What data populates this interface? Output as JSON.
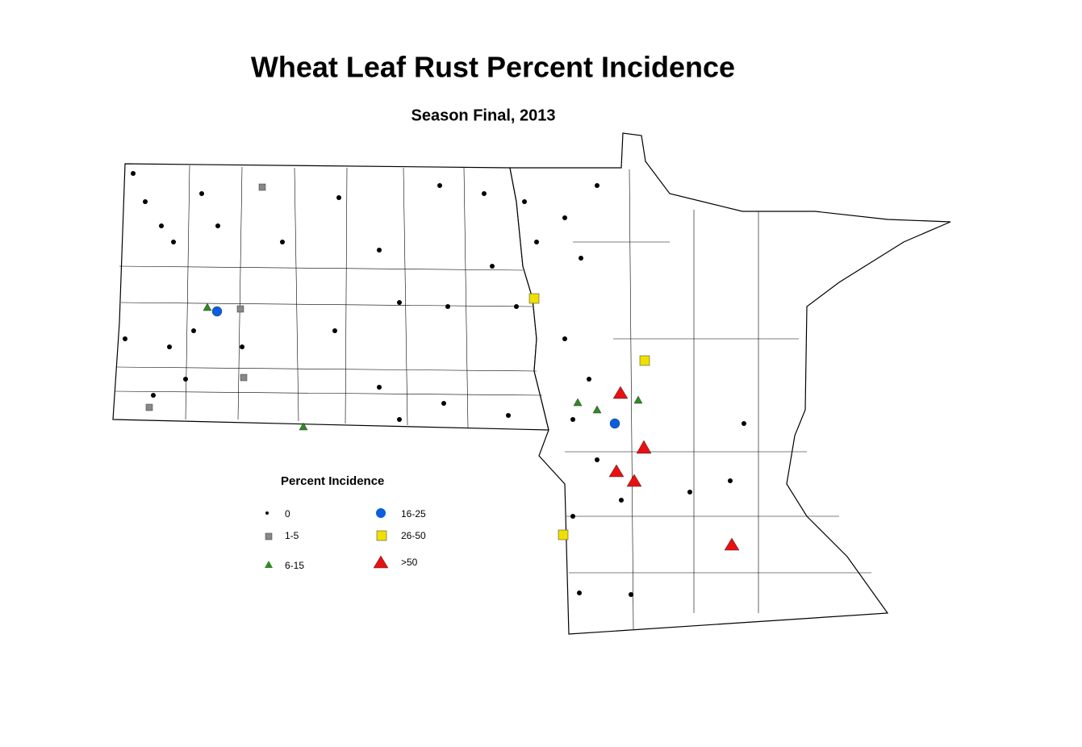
{
  "title": "Wheat Leaf Rust Percent Incidence",
  "subtitle": "Season Final, 2013",
  "legend": {
    "title": "Percent Incidence",
    "items": [
      {
        "label": "0"
      },
      {
        "label": "1-5"
      },
      {
        "label": "6-15"
      },
      {
        "label": "16-25"
      },
      {
        "label": "26-50"
      },
      {
        "label": ">50"
      }
    ]
  }
}
